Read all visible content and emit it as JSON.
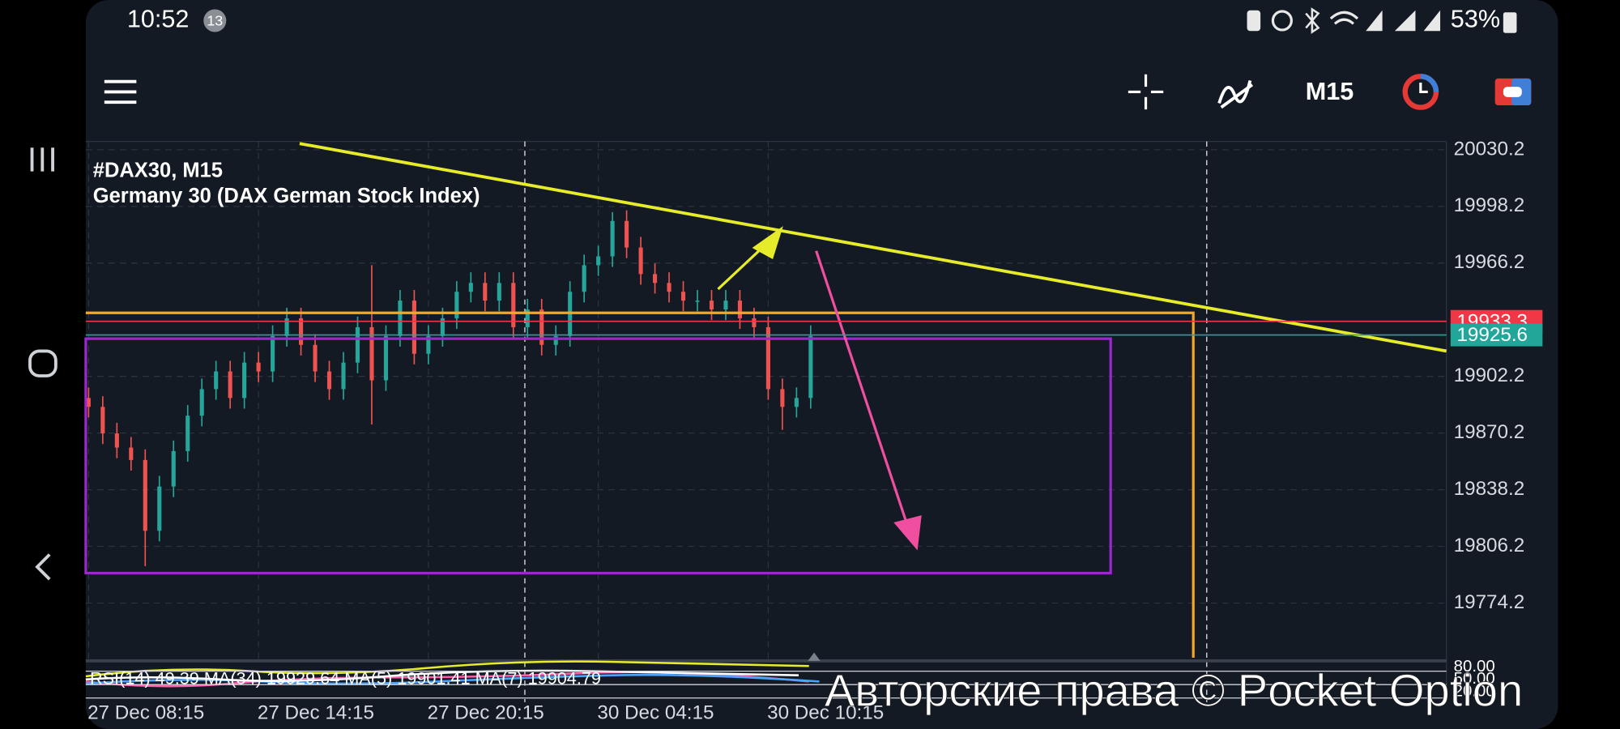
{
  "status_bar": {
    "time": "10:52",
    "notifications": "13",
    "battery": "53%"
  },
  "toolbar": {
    "timeframe": "M15"
  },
  "chart_data": {
    "type": "candlestick",
    "title": "#DAX30, M15",
    "subtitle": "Germany 30 (DAX German Stock Index)",
    "open": [
      19890,
      19885,
      19870,
      19862,
      19855,
      19815,
      19840,
      19860,
      19880,
      19895,
      19905,
      19890,
      19910,
      19905,
      19925,
      19935,
      19920,
      19905,
      19895,
      19910,
      19930,
      19900,
      19925,
      19945,
      19915,
      19925,
      19935,
      19950,
      19955,
      19945,
      19955,
      19930,
      19940,
      19920,
      19925,
      19950,
      19965,
      19970,
      19990,
      19975,
      19960,
      19955,
      19950,
      19945,
      19945,
      19940,
      19945,
      19935,
      19930,
      19895,
      19885,
      19890
    ],
    "high": [
      19896,
      19891,
      19876,
      19868,
      19861,
      19846,
      19866,
      19886,
      19901,
      19911,
      19911,
      19916,
      19916,
      19931,
      19941,
      19941,
      19926,
      19911,
      19916,
      19936,
      19965,
      19931,
      19951,
      19951,
      19931,
      19941,
      19956,
      19961,
      19961,
      19961,
      19961,
      19946,
      19946,
      19931,
      19956,
      19971,
      19976,
      19995,
      19996,
      19981,
      19966,
      19961,
      19956,
      19951,
      19951,
      19951,
      19951,
      19941,
      19936,
      19901,
      19896,
      19931
    ],
    "low": [
      19879,
      19864,
      19856,
      19849,
      19795,
      19809,
      19834,
      19854,
      19874,
      19889,
      19884,
      19884,
      19899,
      19899,
      19919,
      19914,
      19899,
      19889,
      19889,
      19904,
      19875,
      19894,
      19919,
      19909,
      19909,
      19919,
      19929,
      19944,
      19939,
      19939,
      19924,
      19924,
      19914,
      19914,
      19919,
      19944,
      19959,
      19964,
      19969,
      19954,
      19949,
      19944,
      19939,
      19939,
      19934,
      19934,
      19929,
      19924,
      19889,
      19872,
      19879,
      19884
    ],
    "close": [
      19885,
      19870,
      19862,
      19855,
      19815,
      19840,
      19860,
      19880,
      19895,
      19905,
      19890,
      19910,
      19905,
      19925,
      19935,
      19920,
      19905,
      19895,
      19910,
      19930,
      19900,
      19925,
      19945,
      19915,
      19925,
      19935,
      19950,
      19955,
      19945,
      19955,
      19930,
      19940,
      19920,
      19925,
      19950,
      19965,
      19970,
      19990,
      19975,
      19960,
      19955,
      19950,
      19945,
      19945,
      19940,
      19945,
      19935,
      19930,
      19895,
      19885,
      19890,
      19925
    ],
    "colors": {
      "up": "#26a69a",
      "down": "#ef5350"
    },
    "xlim": [
      -0.2,
      95.9
    ],
    "xticks": [
      {
        "value": 0,
        "label": "27 Dec 08:15"
      },
      {
        "value": 12,
        "label": "27 Dec 14:15"
      },
      {
        "value": 24,
        "label": "27 Dec 20:15"
      },
      {
        "value": 36,
        "label": "30 Dec 04:15"
      },
      {
        "value": 48,
        "label": "30 Dec 10:15"
      }
    ],
    "ylim": [
      19742.7,
      20034.9
    ],
    "yticks": [
      20030.2,
      19998.2,
      19966.2,
      19902.2,
      19870.2,
      19838.2,
      19806.2,
      19774.2
    ],
    "grid": true,
    "price_lines": [
      {
        "value": 19933.3,
        "color": "#f23645"
      },
      {
        "value": 19925.6,
        "color": "#22a699"
      }
    ]
  },
  "indicator": {
    "label": "RSI(14) 49.39 MA(34) 19929.64 MA(5) 19901.41 MA(7) 19904.79",
    "levels": [
      "80.00",
      "50.00",
      "20.00"
    ]
  },
  "watermark": "Авторские права © Pocket Option"
}
